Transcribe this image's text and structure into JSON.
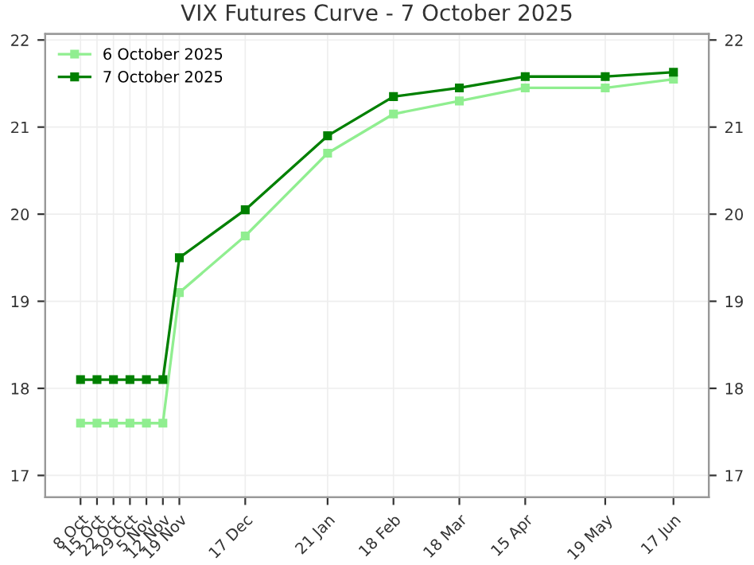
{
  "chart_data": {
    "type": "line",
    "title": "VIX Futures Curve - 7 October 2025",
    "x": [
      "2025-10-08",
      "2025-10-15",
      "2025-10-22",
      "2025-10-29",
      "2025-11-05",
      "2025-11-12",
      "2025-11-19",
      "2025-12-17",
      "2026-01-21",
      "2026-02-18",
      "2026-03-18",
      "2026-04-15",
      "2026-05-19",
      "2026-06-17"
    ],
    "series": [
      {
        "name": "6 October 2025",
        "color": "#90ee90",
        "values": [
          17.6,
          17.6,
          17.6,
          17.6,
          17.6,
          17.6,
          19.1,
          19.75,
          20.7,
          21.15,
          21.3,
          21.45,
          21.45,
          21.55
        ]
      },
      {
        "name": "7 October 2025",
        "color": "#008000",
        "values": [
          18.1,
          18.1,
          18.1,
          18.1,
          18.1,
          18.1,
          19.5,
          20.05,
          20.9,
          21.35,
          21.45,
          21.58,
          21.58,
          21.63
        ]
      }
    ],
    "xlim": [
      "2025-09-23",
      "2026-07-02"
    ],
    "xticks": [
      {
        "value": "2025-10-08",
        "label": "8 Oct"
      },
      {
        "value": "2025-10-15",
        "label": "15 Oct"
      },
      {
        "value": "2025-10-22",
        "label": "22 Oct"
      },
      {
        "value": "2025-10-29",
        "label": "29 Oct"
      },
      {
        "value": "2025-11-05",
        "label": "5 Nov"
      },
      {
        "value": "2025-11-12",
        "label": "12 Nov"
      },
      {
        "value": "2025-11-19",
        "label": "19 Nov"
      },
      {
        "value": "2025-12-17",
        "label": "17 Dec"
      },
      {
        "value": "2026-01-21",
        "label": "21 Jan"
      },
      {
        "value": "2026-02-18",
        "label": "18 Feb"
      },
      {
        "value": "2026-03-18",
        "label": "18 Mar"
      },
      {
        "value": "2026-04-15",
        "label": "15 Apr"
      },
      {
        "value": "2026-05-19",
        "label": "19 May"
      },
      {
        "value": "2026-06-17",
        "label": "17 Jun"
      }
    ],
    "ylim": [
      16.75,
      22.07
    ],
    "yticks": [
      17,
      18,
      19,
      20,
      21,
      22
    ],
    "y2lim": [
      16.75,
      22.07
    ],
    "y2ticks": [
      17,
      18,
      19,
      20,
      21,
      22
    ],
    "grid": true,
    "legend": "top left",
    "marker": "square",
    "line_style": "solid"
  }
}
